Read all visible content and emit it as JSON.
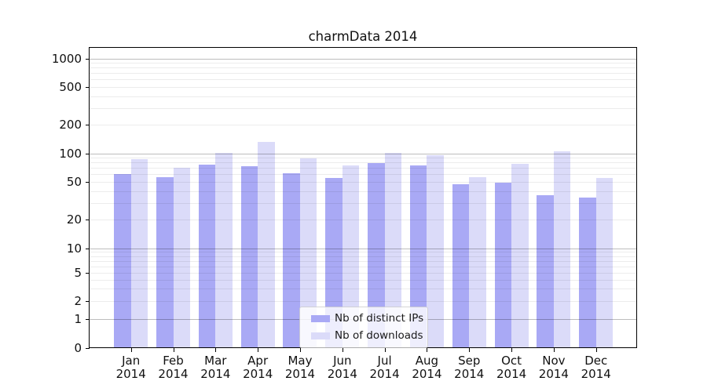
{
  "chart_data": {
    "type": "bar",
    "title": "charmData 2014",
    "x_tick_months": [
      "Jan",
      "Feb",
      "Mar",
      "Apr",
      "May",
      "Jun",
      "Jul",
      "Aug",
      "Sep",
      "Oct",
      "Nov",
      "Dec"
    ],
    "x_tick_year": "2014",
    "series": [
      {
        "name": "Nb of distinct IPs",
        "color": "#a9a9f5",
        "values": [
          60,
          56,
          76,
          73,
          62,
          55,
          79,
          74,
          47,
          49,
          36,
          34
        ]
      },
      {
        "name": "Nb of downloads",
        "color": "#dbdbf9",
        "values": [
          87,
          70,
          101,
          132,
          88,
          75,
          101,
          95,
          56,
          77,
          104,
          55
        ]
      }
    ],
    "yticks": [
      0,
      1,
      2,
      5,
      10,
      20,
      50,
      100,
      200,
      500,
      1000
    ],
    "yscale": "symlog",
    "ylim": [
      0,
      1000
    ],
    "xlabel": "",
    "ylabel": "",
    "grid": "horizontal log minor + major gridlines",
    "legend_position": "lower center"
  },
  "colors": {
    "background": "#ffffff",
    "axis": "#000000",
    "text": "#111111",
    "grid_minor": "rgba(0,0,0,0.075)",
    "grid_major": "rgba(0,0,0,0.26)",
    "legend_background": "rgba(255,255,255,0.8)"
  }
}
